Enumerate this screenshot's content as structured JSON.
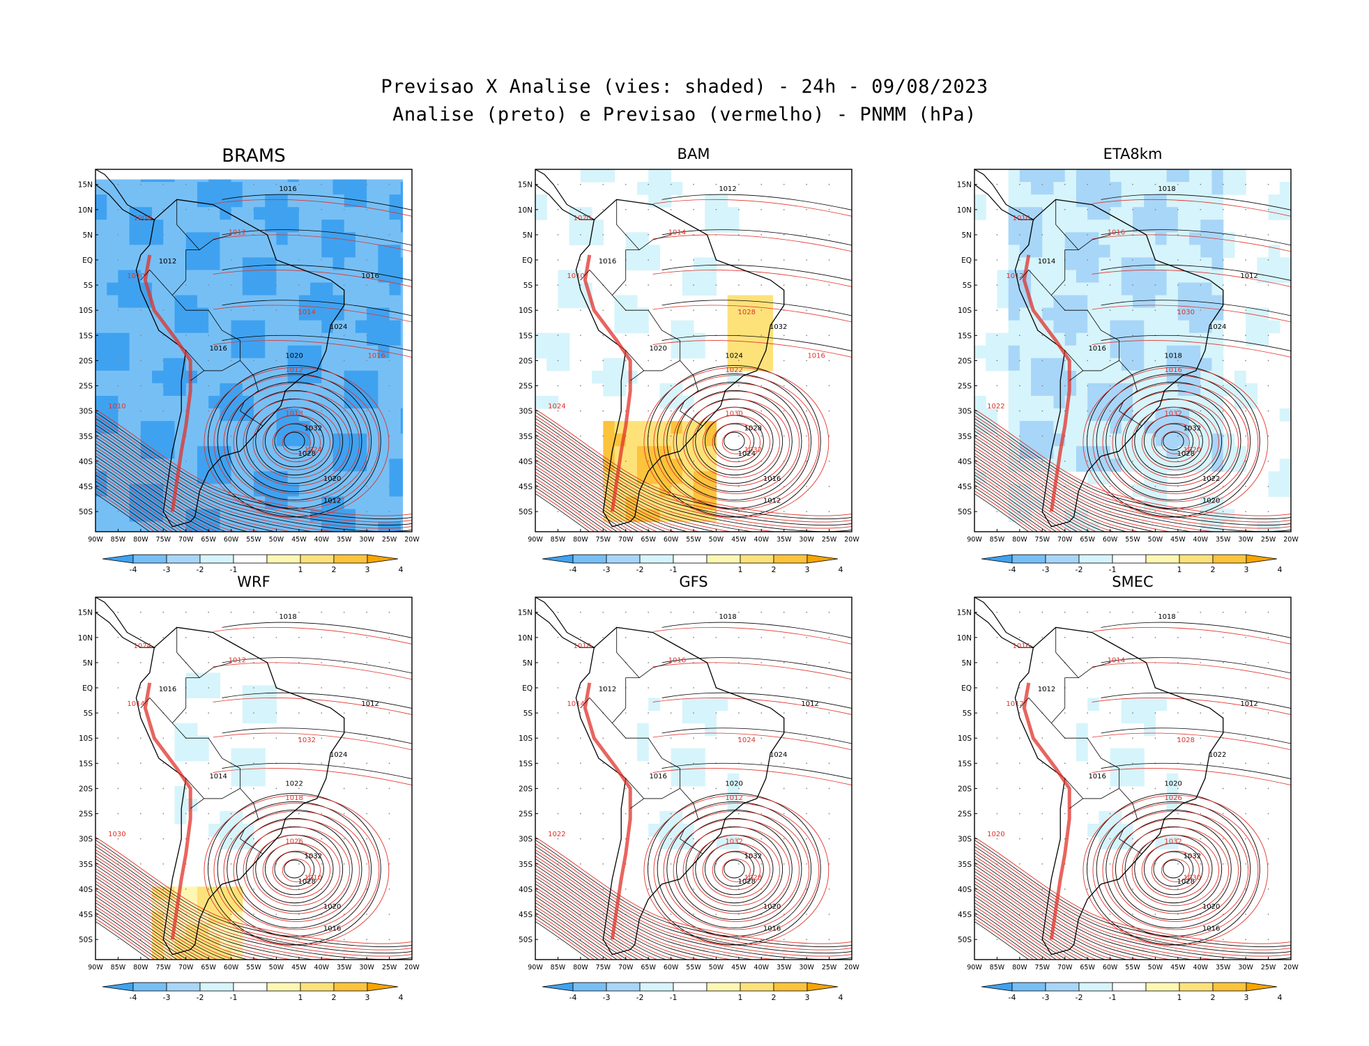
{
  "header": {
    "line1": "Previsao X Analise (vies: shaded) - 24h - 09/08/2023",
    "line2": "Analise (preto) e Previsao (vermelho) - PNMM (hPa)"
  },
  "axes": {
    "lat_labels": [
      "15N",
      "10N",
      "5N",
      "EQ",
      "5S",
      "10S",
      "15S",
      "20S",
      "25S",
      "30S",
      "35S",
      "40S",
      "45S",
      "50S"
    ],
    "lon_labels": [
      "90W",
      "85W",
      "80W",
      "75W",
      "70W",
      "65W",
      "60W",
      "55W",
      "50W",
      "45W",
      "40W",
      "35W",
      "30W",
      "25W",
      "20W"
    ]
  },
  "colorbar": {
    "tick_labels": [
      "-4",
      "-3",
      "-2",
      "-1",
      "1",
      "2",
      "3",
      "4"
    ],
    "colors": [
      "#3fa2f0",
      "#76bff5",
      "#a8d6f8",
      "#d6f4fb",
      "#ffffff",
      "#fdf7b3",
      "#fde27a",
      "#fcc33c",
      "#f7a500"
    ]
  },
  "line_colors": {
    "analysis": "#000000",
    "forecast": "#e0322a"
  },
  "panels": [
    {
      "model": "BRAMS",
      "bias_level": "strong_negative",
      "analysis_labels": [
        "1016",
        "1012",
        "1016",
        "1020",
        "1024",
        "1032",
        "1028",
        "1020",
        "1012",
        "1016"
      ],
      "forecast_labels": [
        "1010",
        "1012",
        "1008",
        "1010",
        "1014",
        "1018",
        "1024",
        "1012",
        "1016"
      ]
    },
    {
      "model": "BAM",
      "bias_level": "positive",
      "analysis_labels": [
        "1012",
        "1016",
        "1020",
        "1024",
        "1032",
        "1028",
        "1024",
        "1016",
        "1012"
      ],
      "forecast_labels": [
        "1010",
        "1014",
        "1020",
        "1024",
        "1028",
        "1030",
        "1032",
        "1022",
        "1016"
      ]
    },
    {
      "model": "ETA8km",
      "bias_level": "negative",
      "analysis_labels": [
        "1018",
        "1014",
        "1016",
        "1018",
        "1024",
        "1032",
        "1028",
        "1022",
        "1020",
        "1012"
      ],
      "forecast_labels": [
        "1012",
        "1016",
        "1010",
        "1022",
        "1030",
        "1032",
        "1020",
        "1016"
      ]
    },
    {
      "model": "WRF",
      "bias_level": "mixed",
      "analysis_labels": [
        "1018",
        "1016",
        "1014",
        "1022",
        "1024",
        "1032",
        "1028",
        "1020",
        "1016",
        "1012"
      ],
      "forecast_labels": [
        "1014",
        "1012",
        "1024",
        "1030",
        "1032",
        "1026",
        "1010",
        "1018"
      ]
    },
    {
      "model": "GFS",
      "bias_level": "slight",
      "analysis_labels": [
        "1018",
        "1012",
        "1016",
        "1020",
        "1024",
        "1032",
        "1028",
        "1020",
        "1016",
        "1012"
      ],
      "forecast_labels": [
        "1014",
        "1016",
        "1018",
        "1022",
        "1024",
        "1032",
        "1028",
        "1012"
      ]
    },
    {
      "model": "SMEC",
      "bias_level": "slight",
      "analysis_labels": [
        "1018",
        "1012",
        "1016",
        "1020",
        "1022",
        "1032",
        "1028",
        "1020",
        "1016",
        "1012"
      ],
      "forecast_labels": [
        "1012",
        "1014",
        "1016",
        "1020",
        "1028",
        "1032",
        "1030",
        "1026"
      ]
    }
  ]
}
